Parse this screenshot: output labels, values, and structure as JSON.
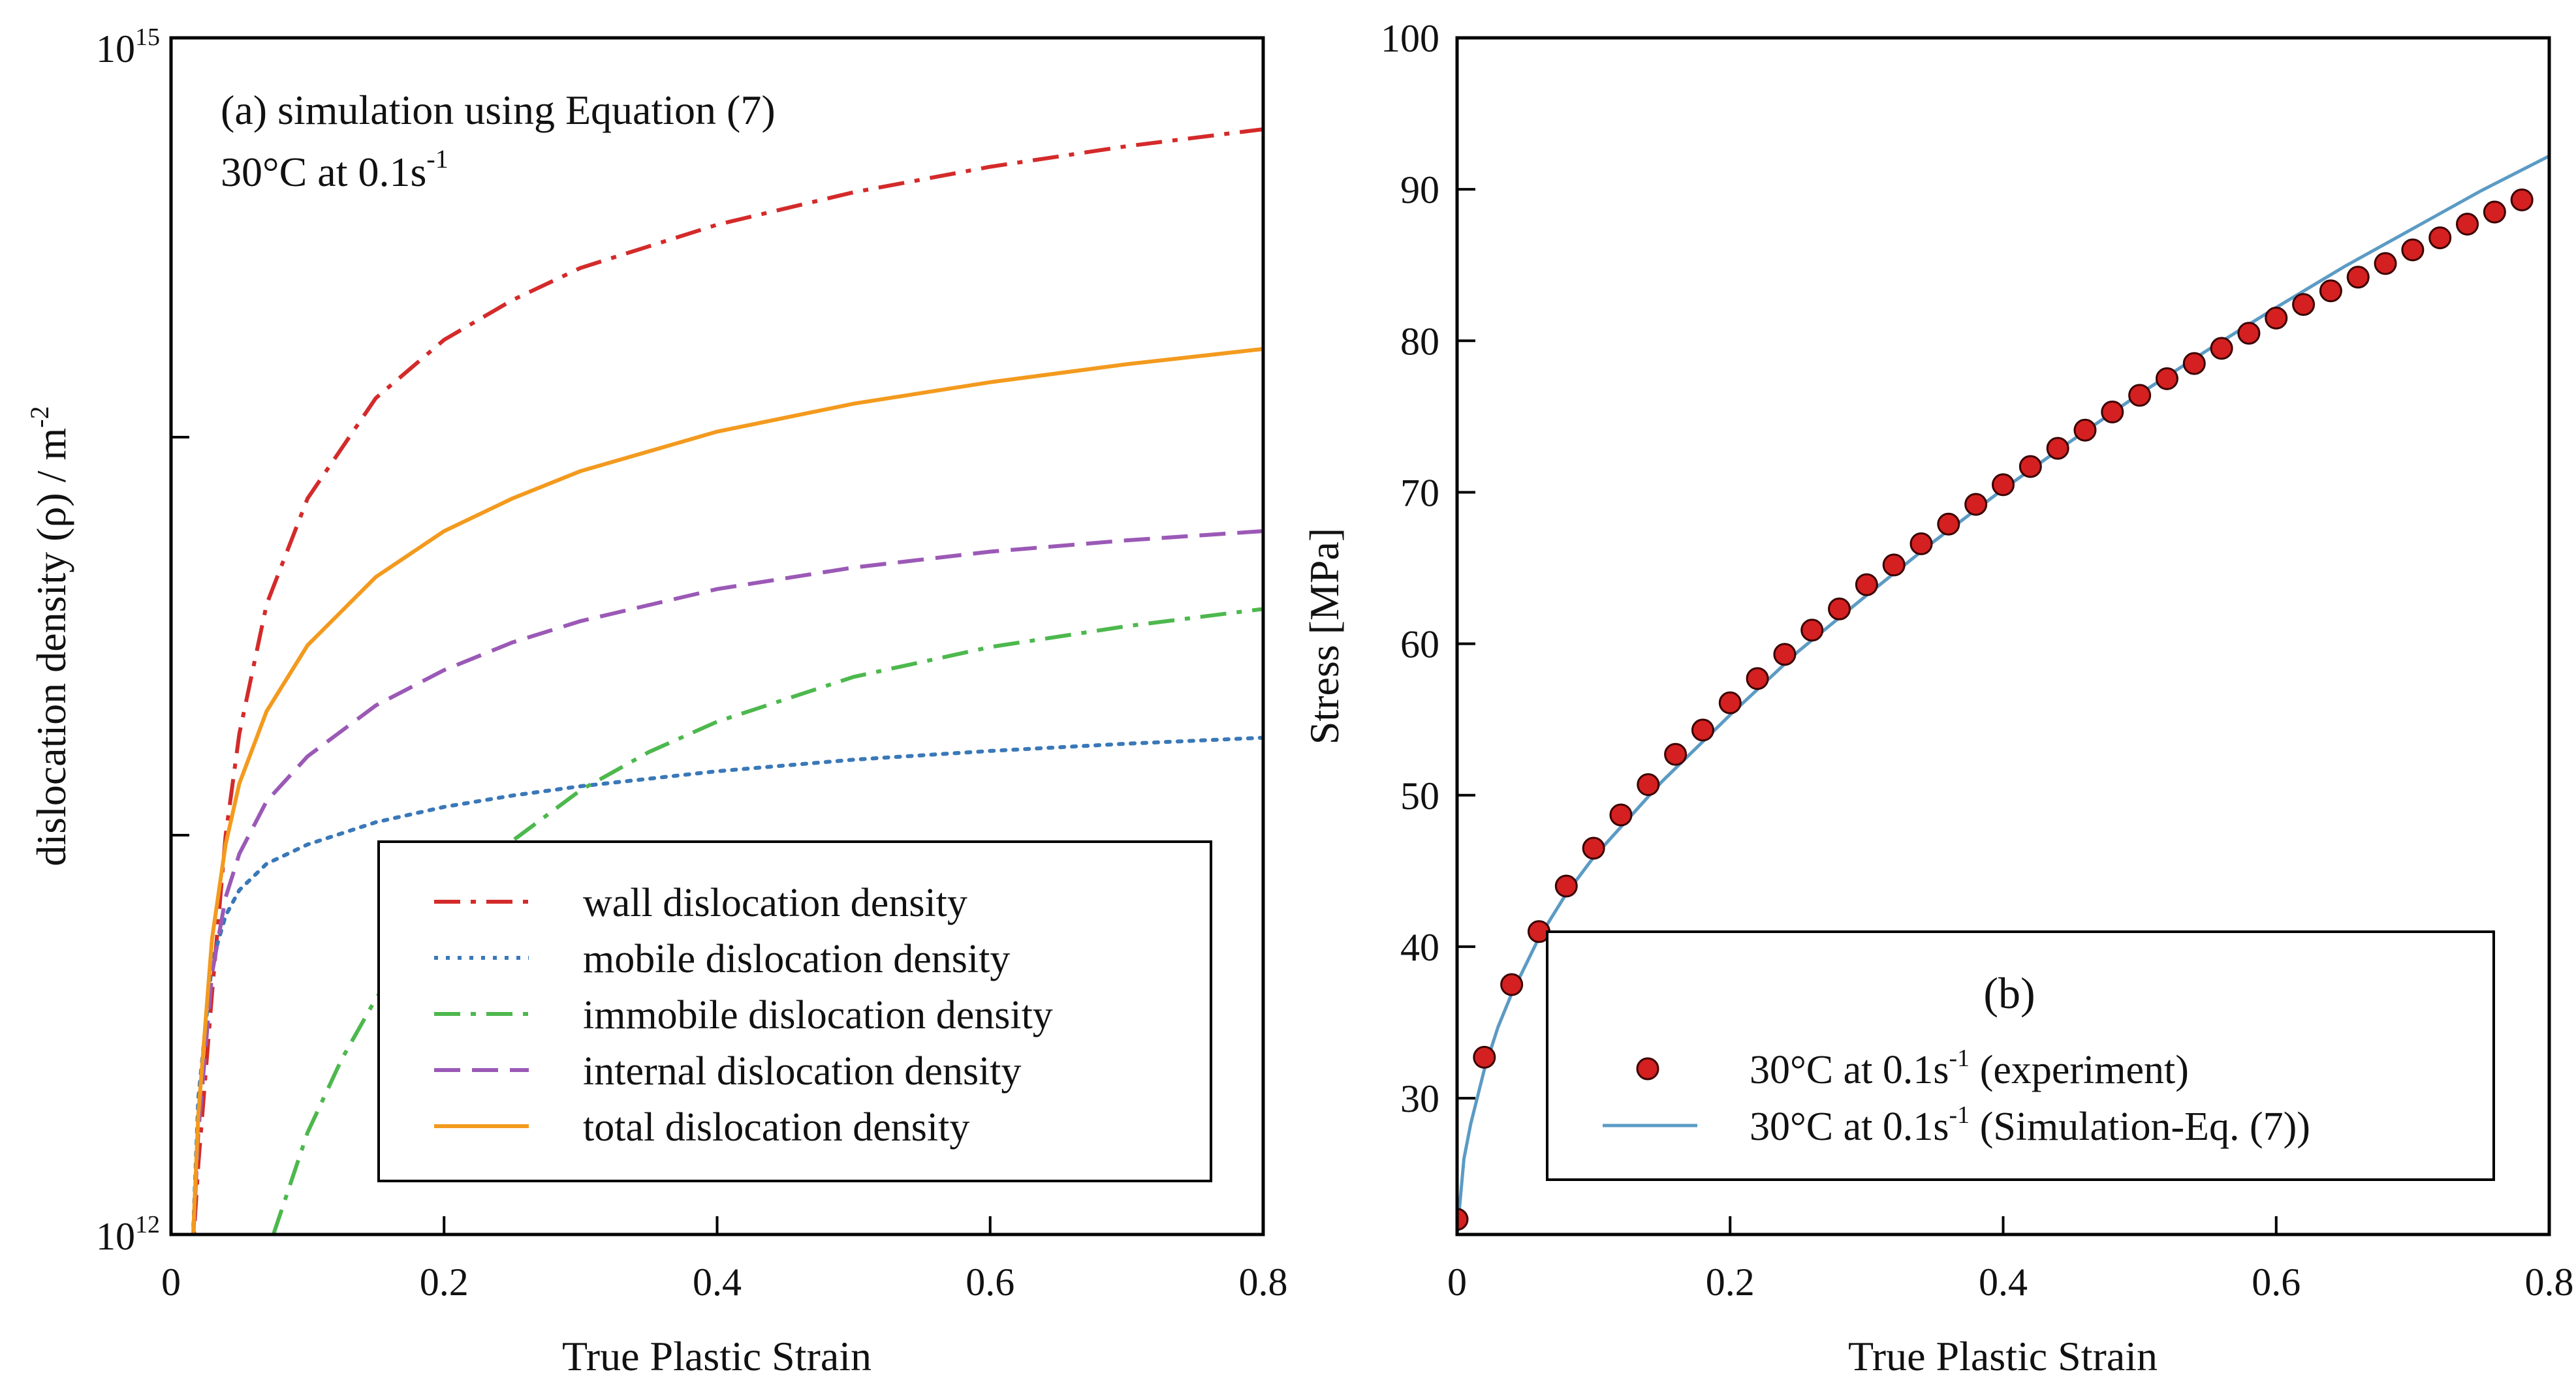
{
  "chart_data": [
    {
      "panel": "a",
      "type": "line",
      "annotation": {
        "line1": "(a) simulation using Equation (7)",
        "line2_base": "30°C at 0.1s",
        "line2_sup": "-1"
      },
      "xlabel": "True Plastic Strain",
      "ylabel": {
        "base": "dislocation density (ρ) / m",
        "sup": "-2"
      },
      "xlim": [
        0,
        0.8
      ],
      "ylim": [
        1000000000000.0,
        1000000000000000.0
      ],
      "yscale": "log",
      "xticks": [
        0,
        0.2,
        0.4,
        0.6,
        0.8
      ],
      "xtick_labels": [
        "0",
        "0.2",
        "0.4",
        "0.6",
        "0.8"
      ],
      "ytick_labels": [
        {
          "base": "10",
          "sup": "12"
        },
        {
          "base": "10",
          "sup": "15"
        }
      ],
      "legend_position": "bottom-right",
      "series": [
        {
          "name": "wall dislocation density",
          "color": "#d42a2a",
          "dash": "dashdot",
          "x": [
            0.015,
            0.02,
            0.03,
            0.04,
            0.05,
            0.07,
            0.1,
            0.15,
            0.2,
            0.25,
            0.3,
            0.4,
            0.5,
            0.6,
            0.7,
            0.8
          ],
          "y": [
            800000000000.0,
            1500000000000.0,
            4000000000000.0,
            10000000000000.0,
            18000000000000.0,
            38000000000000.0,
            70000000000000.0,
            125000000000000.0,
            175000000000000.0,
            220000000000000.0,
            265000000000000.0,
            340000000000000.0,
            410000000000000.0,
            475000000000000.0,
            535000000000000.0,
            590000000000000.0
          ]
        },
        {
          "name": "mobile dislocation density",
          "color": "#3a78b8",
          "dash": "dotted",
          "x": [
            0.015,
            0.02,
            0.03,
            0.04,
            0.05,
            0.07,
            0.1,
            0.15,
            0.2,
            0.25,
            0.3,
            0.4,
            0.5,
            0.6,
            0.7,
            0.8
          ],
          "y": [
            800000000000.0,
            2200000000000.0,
            4800000000000.0,
            6300000000000.0,
            7300000000000.0,
            8500000000000.0,
            9500000000000.0,
            10800000000000.0,
            11800000000000.0,
            12600000000000.0,
            13300000000000.0,
            14500000000000.0,
            15500000000000.0,
            16300000000000.0,
            17000000000000.0,
            17600000000000.0
          ]
        },
        {
          "name": "immobile dislocation density",
          "color": "#4db84d",
          "dash": "dashdot",
          "x": [
            0.075,
            0.1,
            0.125,
            0.15,
            0.175,
            0.2,
            0.25,
            0.3,
            0.35,
            0.4,
            0.5,
            0.6,
            0.7,
            0.8
          ],
          "y": [
            1000000000000.0,
            1800000000000.0,
            2750000000000.0,
            3900000000000.0,
            5200000000000.0,
            6600000000000.0,
            9700000000000.0,
            13000000000000.0,
            16200000000000.0,
            19300000000000.0,
            25000000000000.0,
            29700000000000.0,
            33500000000000.0,
            37000000000000.0
          ]
        },
        {
          "name": "internal dislocation density",
          "color": "#9b59b6",
          "dash": "dashed",
          "x": [
            0.015,
            0.02,
            0.03,
            0.04,
            0.05,
            0.07,
            0.1,
            0.15,
            0.2,
            0.25,
            0.3,
            0.4,
            0.5,
            0.6,
            0.7,
            0.8
          ],
          "y": [
            800000000000.0,
            1800000000000.0,
            4500000000000.0,
            7000000000000.0,
            9000000000000.0,
            12200000000000.0,
            15800000000000.0,
            21200000000000.0,
            26000000000000.0,
            30500000000000.0,
            34500000000000.0,
            41500000000000.0,
            47000000000000.0,
            51500000000000.0,
            55000000000000.0,
            58000000000000.0
          ]
        },
        {
          "name": "total dislocation density",
          "color": "#f39a1e",
          "dash": "solid",
          "x": [
            0.015,
            0.02,
            0.03,
            0.04,
            0.05,
            0.07,
            0.1,
            0.15,
            0.2,
            0.25,
            0.3,
            0.4,
            0.5,
            0.6,
            0.7,
            0.8
          ],
          "y": [
            800000000000.0,
            2000000000000.0,
            5500000000000.0,
            9500000000000.0,
            13500000000000.0,
            20500000000000.0,
            30000000000000.0,
            44500000000000.0,
            58000000000000.0,
            70000000000000.0,
            82000000000000.0,
            103000000000000.0,
            121000000000000.0,
            137000000000000.0,
            152000000000000.0,
            166000000000000.0
          ]
        }
      ]
    },
    {
      "panel": "b",
      "type": "scatter",
      "annotation": "(b)",
      "xlabel": "True Plastic Strain",
      "ylabel": "Stress [MPa]",
      "xlim": [
        0,
        0.8
      ],
      "ylim": [
        21,
        100
      ],
      "xticks": [
        0,
        0.2,
        0.4,
        0.6,
        0.8
      ],
      "xtick_labels": [
        "0",
        "0.2",
        "0.4",
        "0.6",
        "0.8"
      ],
      "yticks": [
        30,
        40,
        50,
        60,
        70,
        80,
        90,
        100
      ],
      "ytick_labels": [
        "30",
        "40",
        "50",
        "60",
        "70",
        "80",
        "90",
        "100"
      ],
      "legend_position": "bottom-right",
      "series": [
        {
          "name_base": "30°C at 0.1s",
          "name_sup": "-1",
          "name_suffix": " (experiment)",
          "marker": "circle",
          "color": "#d42020",
          "x": [
            0,
            0.02,
            0.04,
            0.06,
            0.08,
            0.1,
            0.12,
            0.14,
            0.16,
            0.18,
            0.2,
            0.22,
            0.24,
            0.26,
            0.28,
            0.3,
            0.32,
            0.34,
            0.36,
            0.38,
            0.4,
            0.42,
            0.44,
            0.46,
            0.48,
            0.5,
            0.52,
            0.54,
            0.56,
            0.58,
            0.6,
            0.62,
            0.64,
            0.66,
            0.68,
            0.7,
            0.72,
            0.74,
            0.76,
            0.78
          ],
          "y": [
            22.0,
            32.7,
            37.5,
            41.0,
            44.0,
            46.5,
            48.7,
            50.7,
            52.7,
            54.3,
            56.1,
            57.7,
            59.3,
            60.9,
            62.3,
            63.9,
            65.2,
            66.6,
            67.9,
            69.2,
            70.5,
            71.7,
            72.9,
            74.1,
            75.3,
            76.4,
            77.5,
            78.5,
            79.5,
            80.5,
            81.5,
            82.4,
            83.3,
            84.2,
            85.1,
            86.0,
            86.8,
            87.7,
            88.5,
            89.3
          ]
        },
        {
          "name_base": "30°C at 0.1s",
          "name_sup": "-1",
          "name_suffix": " (Simulation-Eq. (7))",
          "marker": "line",
          "color": "#5b9bc4",
          "x": [
            0,
            0.005,
            0.01,
            0.02,
            0.03,
            0.04,
            0.06,
            0.08,
            0.1,
            0.15,
            0.2,
            0.25,
            0.3,
            0.35,
            0.4,
            0.45,
            0.5,
            0.55,
            0.6,
            0.65,
            0.7,
            0.75,
            0.8
          ],
          "y": [
            21.0,
            26.0,
            28.3,
            31.9,
            34.7,
            36.9,
            40.6,
            43.5,
            45.9,
            50.9,
            55.3,
            59.5,
            63.2,
            66.8,
            70.2,
            73.4,
            76.5,
            79.4,
            82.2,
            84.9,
            87.4,
            89.9,
            92.2
          ]
        }
      ]
    }
  ]
}
